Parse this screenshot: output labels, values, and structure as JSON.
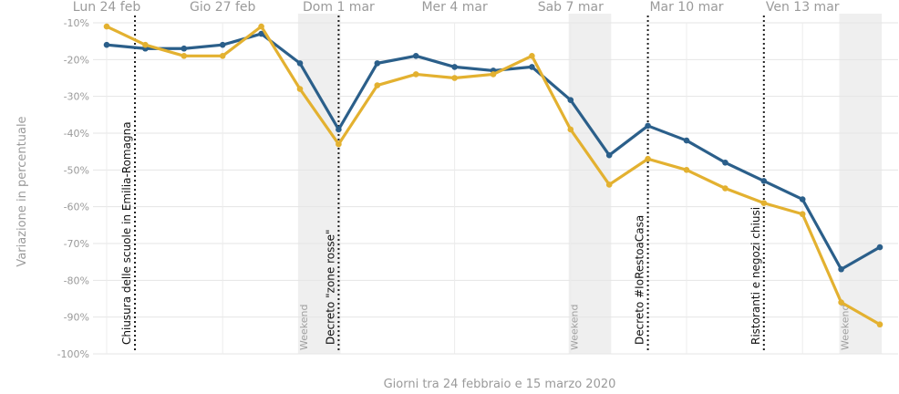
{
  "chart_data": {
    "type": "line",
    "xlabel": "Giorni tra 24 febbraio e 15 marzo 2020",
    "ylabel": "Variazione in percentuale",
    "ylim": [
      -100,
      -10
    ],
    "yticks": [
      "-10%",
      "-20%",
      "-30%",
      "-40%",
      "-50%",
      "-60%",
      "-70%",
      "-80%",
      "-90%",
      "-100%"
    ],
    "x_tick_labels": [
      {
        "day": 0,
        "label": "Lun 24 feb"
      },
      {
        "day": 3,
        "label": "Gio 27 feb"
      },
      {
        "day": 6,
        "label": "Dom 1 mar"
      },
      {
        "day": 9,
        "label": "Mer 4 mar"
      },
      {
        "day": 12,
        "label": "Sab 7 mar"
      },
      {
        "day": 15,
        "label": "Mar 10 mar"
      },
      {
        "day": 18,
        "label": "Ven 13 mar"
      }
    ],
    "days": [
      0,
      1,
      2,
      3,
      4,
      5,
      6,
      7,
      8,
      9,
      10,
      11,
      12,
      13,
      14,
      15,
      16,
      17,
      18,
      19,
      20
    ],
    "series": [
      {
        "color": "#2b5f8a",
        "values": [
          -16,
          -17,
          -17,
          -16,
          -13,
          -21,
          -39,
          -21,
          -19,
          -22,
          -23,
          -22,
          -31,
          -46,
          -38,
          -42,
          -48,
          -53,
          -58,
          -77,
          -71
        ]
      },
      {
        "color": "#e3b130",
        "values": [
          -11,
          -16,
          -19,
          -19,
          -11,
          -28,
          -43,
          -27,
          -24,
          -25,
          -24,
          -19,
          -39,
          -54,
          -47,
          -50,
          -55,
          -59,
          -62,
          -86,
          -92
        ]
      }
    ],
    "weekends": [
      {
        "start": 5,
        "end": 6,
        "label": "Weekend"
      },
      {
        "start": 12,
        "end": 13,
        "label": "Weekend"
      },
      {
        "start": 19,
        "end": 20,
        "label": "Weekend"
      }
    ],
    "annotations": [
      {
        "day": 0.5,
        "label": "Chiusura delle scuole in Emilia-Romagna"
      },
      {
        "day": 6,
        "label": "Decreto \"zone rosse\""
      },
      {
        "day": 14,
        "label": "Decreto #IoRestoaCasa"
      },
      {
        "day": 17,
        "label": "Ristoranti e negozi chiusi"
      }
    ],
    "grid": true
  }
}
